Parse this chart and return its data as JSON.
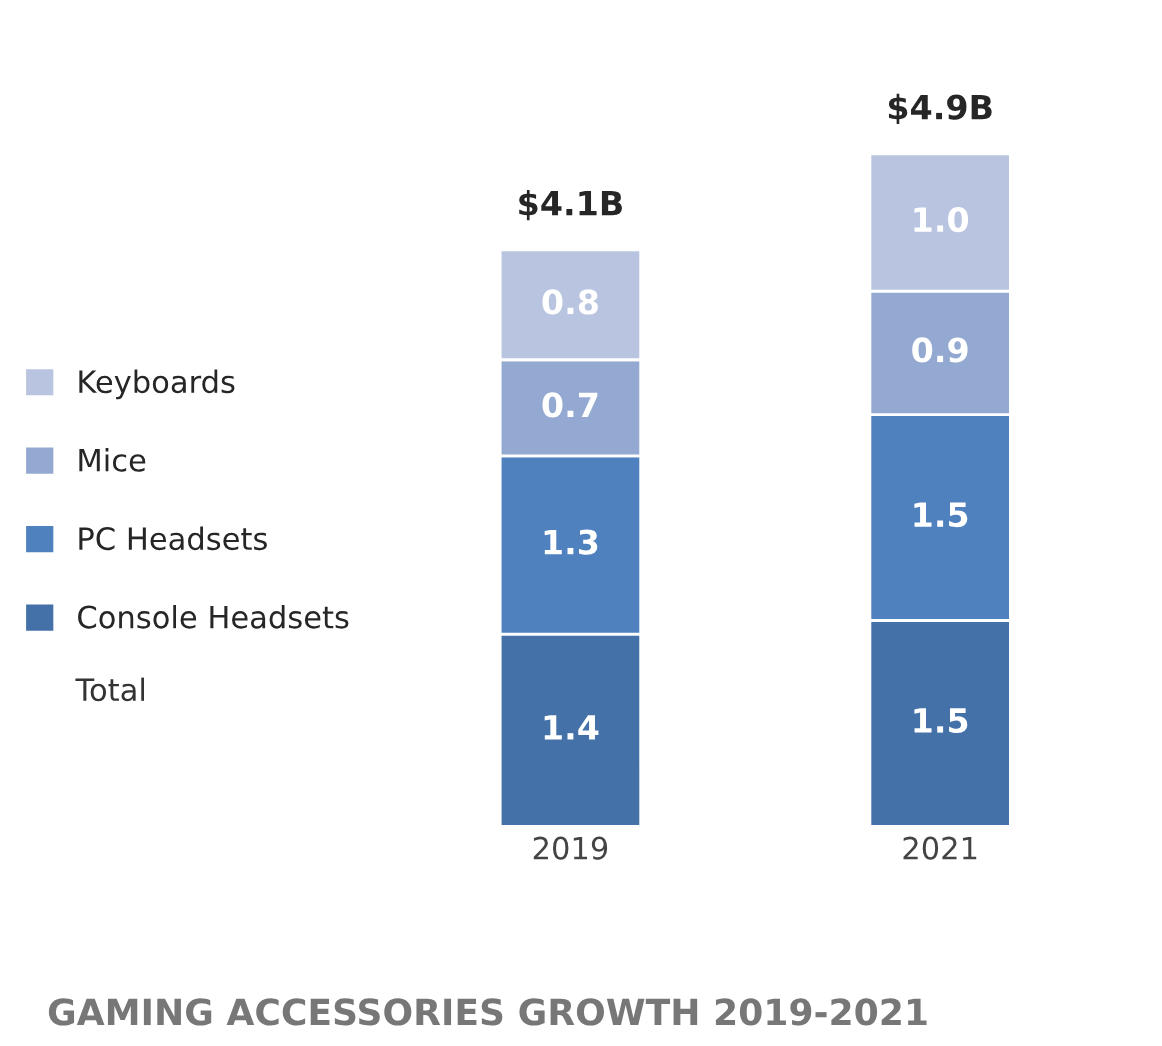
{
  "chart_data": {
    "type": "bar",
    "title": "GAMING ACCESSORIES GROWTH 2019-2021",
    "stacked": true,
    "data_labels": true,
    "legend": "left",
    "categories": [
      "2019",
      "2021"
    ],
    "series": [
      {
        "name": "Console Headsets",
        "color": "#4571a9",
        "values": [
          1.4,
          1.5
        ]
      },
      {
        "name": "PC Headsets",
        "color": "#4f81be",
        "values": [
          1.3,
          1.5
        ]
      },
      {
        "name": "Mice",
        "color": "#94a9d2",
        "values": [
          0.7,
          0.9
        ]
      },
      {
        "name": "Keyboards",
        "color": "#b9c5e0",
        "values": [
          0.8,
          1.0
        ],
        "value_labels": [
          "0.8",
          "1.0"
        ]
      }
    ],
    "totals": [
      "$4.1B",
      "$4.9B"
    ],
    "annotations": [
      "Total"
    ]
  }
}
